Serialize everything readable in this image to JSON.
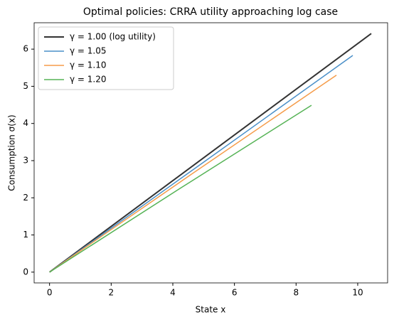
{
  "chart_data": {
    "type": "line",
    "title": "Optimal policies: CRRA utility approaching log case",
    "x_label": "State x",
    "y_label": "Consumption σ(x)",
    "xlim": [
      -0.5,
      10.97
    ],
    "ylim": [
      -0.29,
      6.71
    ],
    "xticks": [
      0,
      2,
      4,
      6,
      8,
      10
    ],
    "yticks": [
      0,
      1,
      2,
      3,
      4,
      5,
      6
    ],
    "legend": "upper left",
    "series": [
      {
        "name": "γ = 1.00 (log utility)",
        "color": "#333333",
        "width": 2,
        "x": [
          0,
          5.2,
          10.44
        ],
        "values": [
          0,
          3.2,
          6.42
        ]
      },
      {
        "name": "γ = 1.05",
        "color": "#4a8fc8",
        "width": 1.5,
        "x": [
          0,
          4.9,
          9.84
        ],
        "values": [
          0,
          2.9,
          5.83
        ]
      },
      {
        "name": "γ = 1.10",
        "color": "#f59c4a",
        "width": 1.5,
        "x": [
          0,
          4.65,
          9.31
        ],
        "values": [
          0,
          2.66,
          5.3
        ]
      },
      {
        "name": "γ = 1.20",
        "color": "#56b356",
        "width": 1.5,
        "x": [
          0,
          4.25,
          8.5
        ],
        "values": [
          0,
          2.26,
          4.49
        ]
      }
    ]
  }
}
